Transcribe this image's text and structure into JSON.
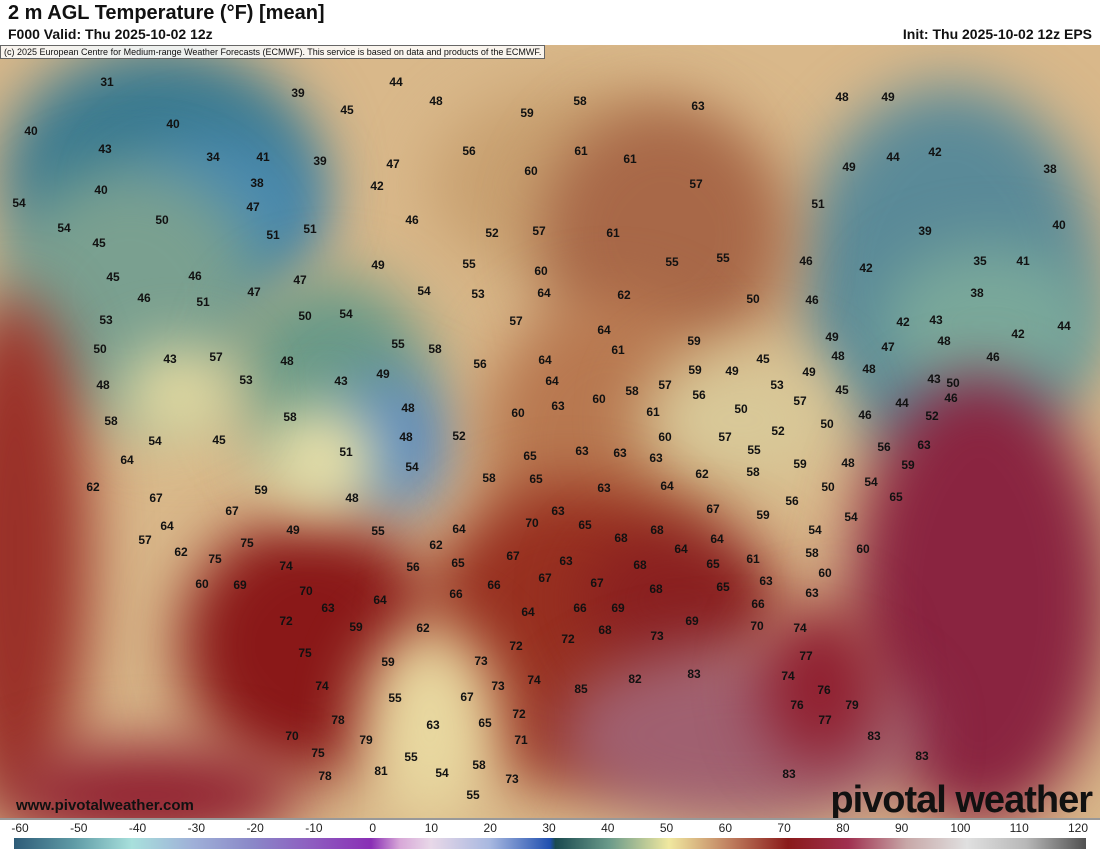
{
  "header": {
    "title": "2 m AGL Temperature (°F) [mean]",
    "valid": "F000 Valid: Thu 2025-10-02 12z",
    "init": "Init: Thu 2025-10-02 12z EPS"
  },
  "map": {
    "credit": "(c) 2025 European Centre for Medium-range Weather Forecasts (ECMWF). This service is based on data and products of the ECMWF.",
    "website": "www.pivotalweather.com",
    "brand": "pivotal weather",
    "temperature_labels": [
      31,
      44,
      39,
      48,
      45,
      58,
      63,
      48,
      49,
      59,
      40,
      40,
      56,
      61,
      61,
      44,
      42,
      43,
      34,
      41,
      39,
      47,
      49,
      38,
      60,
      40,
      38,
      42,
      57,
      51,
      54,
      50,
      47,
      46,
      40,
      54,
      51,
      51,
      52,
      57,
      61,
      39,
      45,
      55,
      55,
      60,
      49,
      55,
      46,
      42,
      35,
      41,
      45,
      46,
      47,
      54,
      53,
      64,
      62,
      38,
      46,
      51,
      47,
      50,
      46,
      53,
      50,
      54,
      57,
      64,
      42,
      43,
      42,
      44,
      59,
      49,
      48,
      50,
      43,
      57,
      55,
      58,
      61,
      47,
      46,
      48,
      64,
      56,
      48,
      49,
      45,
      49,
      48,
      59,
      49,
      53,
      43,
      53,
      48,
      64,
      58,
      60,
      57,
      56,
      45,
      43,
      50,
      57,
      46,
      44,
      58,
      48,
      60,
      63,
      61,
      50,
      46,
      58,
      52,
      50,
      54,
      45,
      48,
      52,
      57,
      52,
      60,
      63,
      65,
      63,
      63,
      55,
      58,
      56,
      64,
      51,
      54,
      58,
      65,
      63,
      59,
      48,
      62,
      59,
      62,
      54,
      50,
      63,
      64,
      65,
      59,
      67,
      48,
      67,
      56,
      67,
      59,
      54,
      63,
      70,
      65,
      54,
      64,
      49,
      55,
      64,
      68,
      57,
      62,
      75,
      62,
      68,
      64,
      64,
      61,
      58,
      60,
      75,
      74,
      56,
      65,
      67,
      63,
      65,
      63,
      60,
      60,
      69,
      67,
      67,
      68,
      70,
      66,
      66,
      68,
      65,
      66,
      63,
      63,
      64,
      64,
      66,
      69,
      72,
      59,
      62,
      69,
      70,
      74,
      73,
      72,
      68,
      72,
      77,
      75,
      59,
      73,
      85,
      82,
      83,
      74,
      73,
      74,
      74,
      76,
      55,
      67,
      72,
      79,
      76,
      78,
      63,
      65,
      77,
      70,
      79,
      71,
      83,
      75,
      55,
      58,
      83,
      78,
      81,
      54,
      73,
      83,
      55
    ]
  },
  "colorbar": {
    "ticks": [
      "-60",
      "-50",
      "-40",
      "-30",
      "-20",
      "-10",
      "0",
      "10",
      "20",
      "30",
      "40",
      "50",
      "60",
      "70",
      "80",
      "90",
      "100",
      "110",
      "120"
    ],
    "units": "°F"
  }
}
